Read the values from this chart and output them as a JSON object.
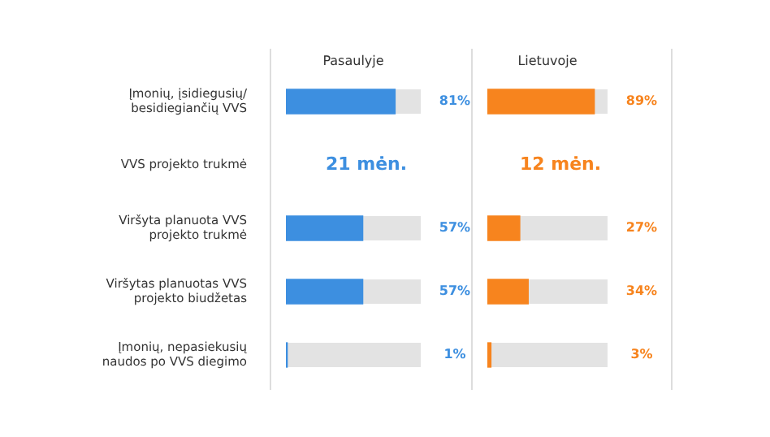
{
  "chart_data": [
    {
      "type": "bar",
      "orientation": "horizontal",
      "title": "Pasaulyje",
      "categories": [
        "Įmonių, įsidiegusių/ besidiegiančių VVS",
        "VVS projekto trukmė",
        "Viršyta planuota VVS projekto trukmė",
        "Viršytas planuotas VVS projekto biudžetas",
        "Įmonių, nepasiekusių naudos po VVS diegimo"
      ],
      "values": [
        81,
        null,
        57,
        57,
        1
      ],
      "color": "#3d8fe0",
      "value_labels": [
        "81%",
        "21 mėn.",
        "57%",
        "57%",
        "1%"
      ],
      "xlim": [
        0,
        100
      ],
      "tick_labels": "y"
    },
    {
      "type": "bar",
      "orientation": "horizontal",
      "title": "Lietuvoje",
      "categories": [
        null,
        null,
        null,
        null,
        null
      ],
      "values": [
        89,
        null,
        27,
        34,
        3
      ],
      "color": "#f7841e",
      "value_labels": [
        "89%",
        "12 mėn.",
        "27%",
        "34%",
        "3%"
      ],
      "xlim": [
        0,
        100
      ],
      "tick_labels": false
    }
  ]
}
